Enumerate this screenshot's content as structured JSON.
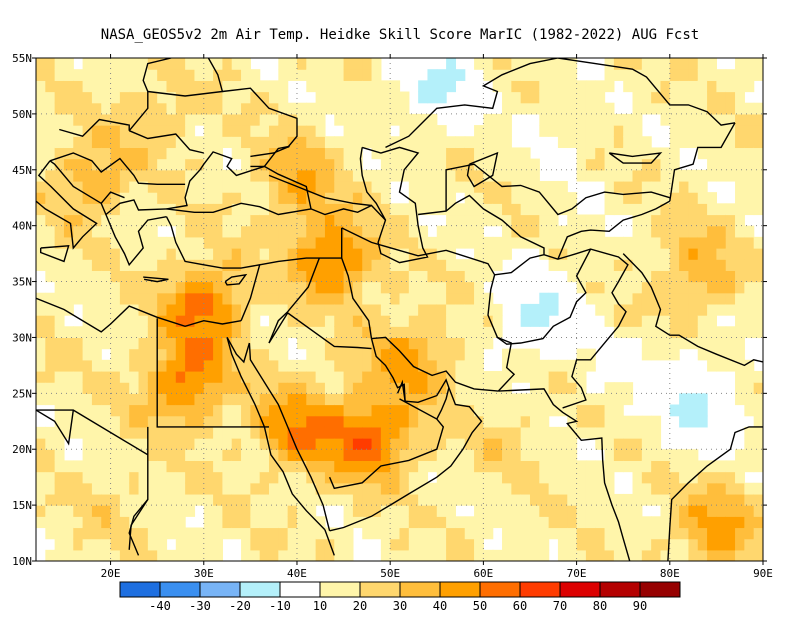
{
  "title": "NASA_GEOS5v2  2m Air Temp. Heidke Skill Score MarIC (1982-2022) AUG Fcst",
  "map": {
    "lon_range": [
      12,
      90
    ],
    "lat_range": [
      10,
      55
    ],
    "x_ticks": [
      "20E",
      "30E",
      "40E",
      "50E",
      "60E",
      "70E",
      "80E",
      "90E"
    ],
    "x_tick_values": [
      20,
      30,
      40,
      50,
      60,
      70,
      80,
      90
    ],
    "y_ticks": [
      "10N",
      "15N",
      "20N",
      "25N",
      "30N",
      "35N",
      "40N",
      "45N",
      "50N",
      "55N"
    ],
    "y_tick_values": [
      10,
      15,
      20,
      25,
      30,
      35,
      40,
      45,
      50,
      55
    ],
    "grid": "dotted"
  },
  "colorbar": {
    "labels": [
      "-40",
      "-30",
      "-20",
      "-10",
      "10",
      "20",
      "30",
      "40",
      "50",
      "60",
      "70",
      "80",
      "90"
    ],
    "colors": [
      "#1e6fe0",
      "#3a8ff0",
      "#78b4f6",
      "#b4f0fa",
      "#ffffff",
      "#fff5aa",
      "#ffd76e",
      "#ffbe3c",
      "#ffa000",
      "#ff6e00",
      "#ff3c00",
      "#dc0000",
      "#b40000",
      "#960000"
    ]
  },
  "chart_data": {
    "type": "heatmap",
    "title": "NASA_GEOS5v2  2m Air Temp. Heidke Skill Score MarIC (1982-2022) AUG Fcst",
    "xlim": [
      12,
      90
    ],
    "ylim": [
      10,
      55
    ],
    "levels": [
      -40,
      -30,
      -20,
      -10,
      10,
      20,
      30,
      40,
      50,
      60,
      70,
      80,
      90
    ],
    "regions": [
      {
        "lon": 30,
        "lat": 33,
        "value": 55
      },
      {
        "lon": 28,
        "lat": 26,
        "value": 55
      },
      {
        "lon": 48,
        "lat": 21,
        "value": 60
      },
      {
        "lon": 44,
        "lat": 37,
        "value": 55
      },
      {
        "lon": 40,
        "lat": 22,
        "value": 50
      },
      {
        "lon": 52,
        "lat": 28,
        "value": 45
      },
      {
        "lon": 18,
        "lat": 44,
        "value": 40
      },
      {
        "lon": 40,
        "lat": 44,
        "value": 40
      },
      {
        "lon": 25,
        "lat": 50,
        "value": 30
      },
      {
        "lon": 85,
        "lat": 13,
        "value": 45
      },
      {
        "lon": 83,
        "lat": 36,
        "value": 40
      },
      {
        "lon": 62,
        "lat": 20,
        "value": 25
      },
      {
        "lon": 70,
        "lat": 40,
        "value": 15
      },
      {
        "lon": 68,
        "lat": 48,
        "value": 10
      },
      {
        "lon": 75,
        "lat": 27,
        "value": 10
      },
      {
        "lon": 83,
        "lat": 24,
        "value": -10
      },
      {
        "lon": 66,
        "lat": 32,
        "value": -10
      },
      {
        "lon": 55,
        "lat": 53,
        "value": -10
      },
      {
        "lon": 14,
        "lat": 28,
        "value": 20
      },
      {
        "lon": 20,
        "lat": 15,
        "value": 25
      }
    ]
  }
}
